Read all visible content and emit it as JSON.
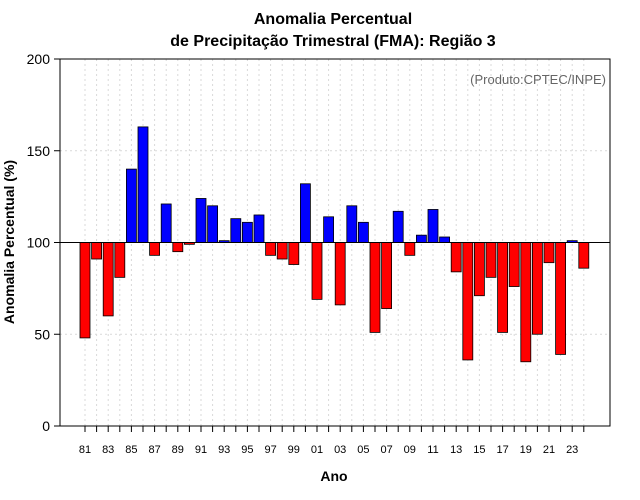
{
  "chart_data": {
    "type": "bar",
    "title_line1": "Anomalia Percentual",
    "title_line2": "de Precipitação Trimestral (FMA): Região 3",
    "xlabel": "Ano",
    "ylabel": "Anomalia Percentual (%)",
    "credit": "(Produto:CPTEC/INPE)",
    "ylim": [
      0,
      200
    ],
    "yticks": [
      0,
      50,
      100,
      150,
      200
    ],
    "baseline": 100,
    "grid": true,
    "colors": {
      "above": "#0000ff",
      "below": "#ff0000",
      "outline": "#000000",
      "grid": "#d9d9d9"
    },
    "categories": [
      "81",
      "82",
      "83",
      "84",
      "85",
      "86",
      "87",
      "88",
      "89",
      "90",
      "91",
      "92",
      "93",
      "94",
      "95",
      "96",
      "97",
      "98",
      "99",
      "00",
      "01",
      "02",
      "03",
      "04",
      "05",
      "06",
      "07",
      "08",
      "09",
      "10",
      "11",
      "12",
      "13",
      "14",
      "15",
      "16",
      "17",
      "18",
      "19",
      "20",
      "21",
      "22",
      "23",
      "24"
    ],
    "xtick_labels": [
      "81",
      "83",
      "85",
      "87",
      "89",
      "91",
      "93",
      "95",
      "97",
      "99",
      "01",
      "03",
      "05",
      "07",
      "09",
      "11",
      "13",
      "15",
      "17",
      "19",
      "21",
      "23"
    ],
    "values": [
      48,
      91,
      60,
      81,
      140,
      163,
      93,
      121,
      95,
      99,
      124,
      120,
      101,
      113,
      111,
      115,
      93,
      91,
      88,
      132,
      69,
      114,
      66,
      120,
      111,
      51,
      64,
      117,
      93,
      104,
      118,
      103,
      84,
      36,
      71,
      81,
      51,
      76,
      35,
      50,
      89,
      39,
      101,
      86
    ]
  }
}
